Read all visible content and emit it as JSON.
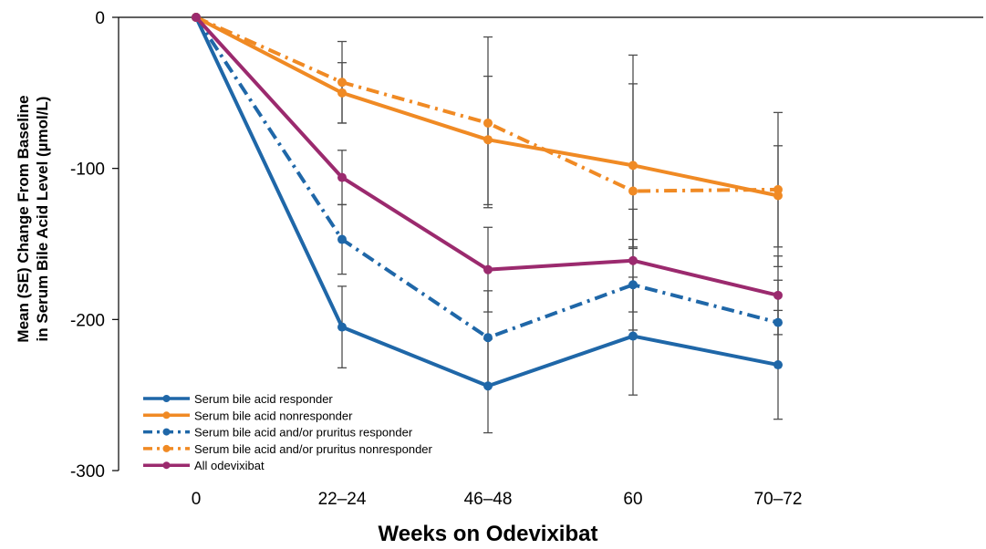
{
  "chart_data": {
    "type": "line",
    "xlabel": "Weeks on Odevixibat",
    "ylabel_lines": [
      "Mean (SE) Change From Baseline",
      "in Serum Bile Acid Level (µmol/L)"
    ],
    "categories": [
      "0",
      "22–24",
      "46–48",
      "60",
      "70–72"
    ],
    "ylim": [
      -300,
      0
    ],
    "yticks": [
      0,
      -100,
      -200,
      -300
    ],
    "grid": false,
    "legend_position": "bottom-left",
    "series": [
      {
        "name": "Serum bile acid responder",
        "color": "#1f67a8",
        "dash": "solid",
        "values": [
          0,
          -205,
          -244,
          -211,
          -230
        ],
        "error_low": [
          0,
          -232,
          -275,
          -250,
          -266
        ],
        "error_high": [
          0,
          -178,
          -213,
          -172,
          -194
        ]
      },
      {
        "name": "Serum bile acid nonresponder",
        "color": "#f08a24",
        "dash": "solid",
        "values": [
          0,
          -50,
          -81,
          -98,
          -118
        ],
        "error_low": [
          0,
          -70,
          -124,
          -152,
          -152
        ],
        "error_high": [
          0,
          -30,
          -39,
          -44,
          -85
        ]
      },
      {
        "name": "Serum bile acid and/or pruritus responder",
        "color": "#1f67a8",
        "dash": "dashdot",
        "values": [
          0,
          -147,
          -212,
          -177,
          -202
        ],
        "error_low": [
          0,
          -170,
          -243,
          -207,
          -230
        ],
        "error_high": [
          0,
          -124,
          -181,
          -147,
          -174
        ]
      },
      {
        "name": "Serum bile acid and/or pruritus nonresponder",
        "color": "#f08a24",
        "dash": "dashdot",
        "values": [
          0,
          -43,
          -70,
          -115,
          -114
        ],
        "error_low": [
          0,
          -70,
          -126,
          -153,
          -165
        ],
        "error_high": [
          0,
          -16,
          -13,
          -25,
          -63
        ]
      },
      {
        "name": "All odevixibat",
        "color": "#9b2a6e",
        "dash": "solid",
        "values": [
          0,
          -106,
          -167,
          -161,
          -184
        ],
        "error_low": [
          0,
          -124,
          -195,
          -195,
          -210
        ],
        "error_high": [
          0,
          -88,
          -139,
          -127,
          -158
        ]
      }
    ]
  }
}
